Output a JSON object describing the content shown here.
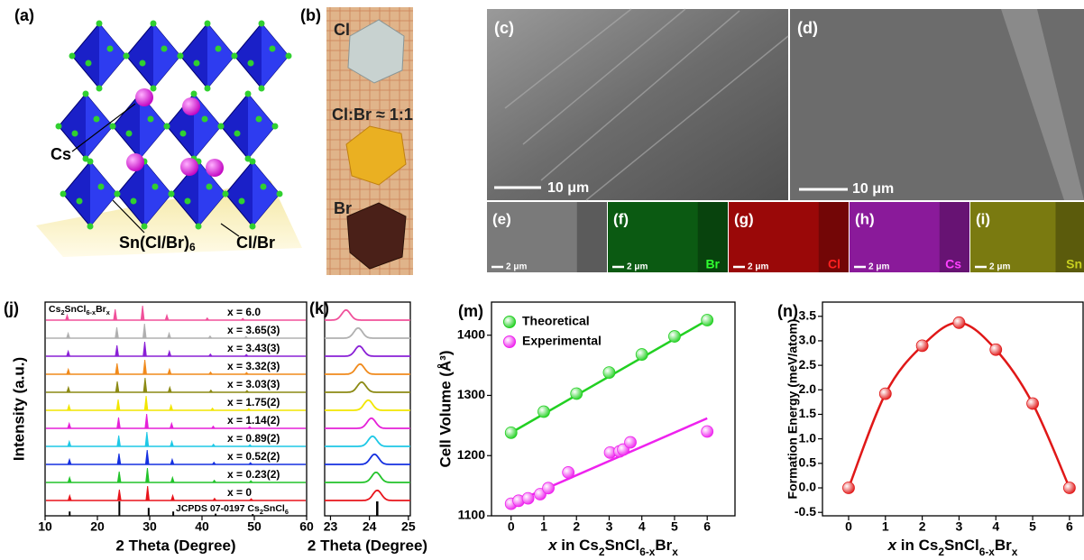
{
  "panel_a": {
    "label": "(a)",
    "cs": "Cs",
    "octahedron": "Sn(Cl/Br)",
    "octahedron_sub": "6",
    "halide": "Cl/Br"
  },
  "panel_b": {
    "label": "(b)",
    "top": "Cl",
    "middle": "Cl:Br ≈ 1:1",
    "bottom": "Br"
  },
  "panel_c": {
    "label": "(c)",
    "scale": "10 μm"
  },
  "panel_d": {
    "label": "(d)",
    "scale": "10 μm"
  },
  "maps": [
    {
      "label": "(e)",
      "scale": "2 μm"
    },
    {
      "label": "(f)",
      "scale": "2 μm",
      "element": "Br"
    },
    {
      "label": "(g)",
      "scale": "2 μm",
      "element": "Cl"
    },
    {
      "label": "(h)",
      "scale": "2 μm",
      "element": "Cs"
    },
    {
      "label": "(i)",
      "scale": "2 μm",
      "element": "Sn"
    }
  ],
  "chart_data": [
    {
      "type": "xrd",
      "label": "(j)",
      "title": [
        {
          "text": "Cs"
        },
        {
          "text": "2",
          "sub": true
        },
        {
          "text": "SnCl"
        },
        {
          "text": "6-x",
          "sub": true
        },
        {
          "text": "Br"
        },
        {
          "text": "x",
          "sub": true
        }
      ],
      "xlabel": "2 Theta (Degree)",
      "ylabel": "Intensity (a.u.)",
      "xlim": [
        10,
        60
      ],
      "xticks": [
        10,
        20,
        30,
        40,
        50,
        60
      ],
      "reference": {
        "name": [
          {
            "text": "JCPDS 07-0197 Cs"
          },
          {
            "text": "2",
            "sub": true
          },
          {
            "text": "SnCl"
          },
          {
            "text": "6",
            "sub": true
          }
        ],
        "color": "#000000",
        "x": [
          14.7,
          24.2,
          29.8,
          34.5,
          42.6,
          49.7
        ],
        "values": [
          0.3,
          1,
          0.55,
          0.3,
          0.15,
          0.12
        ]
      },
      "series": [
        {
          "name": "x = 0",
          "color": "#e8141b",
          "x": [
            14.7,
            24.2,
            29.6,
            34.4,
            42.4,
            49.4
          ],
          "values": [
            0.35,
            0.75,
            1,
            0.35,
            0.15,
            0.12
          ]
        },
        {
          "name": "x = 0.23(2)",
          "color": "#22c32a",
          "x": [
            14.68,
            24.17,
            29.56,
            34.36,
            42.35,
            49.34
          ],
          "values": [
            0.35,
            0.75,
            1,
            0.35,
            0.15,
            0.12
          ]
        },
        {
          "name": "x = 0.52(2)",
          "color": "#1530e0",
          "x": [
            14.66,
            24.13,
            29.52,
            34.3,
            42.28,
            49.26
          ],
          "values": [
            0.35,
            0.75,
            1,
            0.35,
            0.15,
            0.12
          ]
        },
        {
          "name": "x = 0.89(2)",
          "color": "#1ec8e6",
          "x": [
            14.63,
            24.08,
            29.46,
            34.23,
            42.19,
            49.16
          ],
          "values": [
            0.35,
            0.75,
            1,
            0.35,
            0.15,
            0.12
          ]
        },
        {
          "name": "x = 1.14(2)",
          "color": "#e520d8",
          "x": [
            14.61,
            24.05,
            29.42,
            34.19,
            42.14,
            49.1
          ],
          "values": [
            0.35,
            0.75,
            1,
            0.35,
            0.15,
            0.12
          ]
        },
        {
          "name": "x = 1.75(2)",
          "color": "#f2e600",
          "x": [
            14.56,
            23.97,
            29.32,
            34.08,
            42.0,
            48.94
          ],
          "values": [
            0.35,
            0.75,
            1,
            0.35,
            0.15,
            0.12
          ]
        },
        {
          "name": "x = 3.03(3)",
          "color": "#8c8a14",
          "x": [
            14.46,
            23.8,
            29.12,
            33.84,
            41.7,
            48.6
          ],
          "values": [
            0.35,
            0.75,
            1,
            0.35,
            0.15,
            0.12
          ]
        },
        {
          "name": "x = 3.32(3)",
          "color": "#f08a1c",
          "x": [
            14.44,
            23.76,
            29.07,
            33.78,
            41.63,
            48.52
          ],
          "values": [
            0.35,
            0.75,
            1,
            0.35,
            0.15,
            0.12
          ]
        },
        {
          "name": "x = 3.43(3)",
          "color": "#8a20d6",
          "x": [
            14.42,
            23.74,
            29.05,
            33.76,
            41.6,
            48.48
          ],
          "values": [
            0.35,
            0.75,
            1,
            0.35,
            0.15,
            0.12
          ]
        },
        {
          "name": "x = 3.65(3)",
          "color": "#b0b0b0",
          "x": [
            14.41,
            23.71,
            29.01,
            33.71,
            41.54,
            48.42
          ],
          "values": [
            0.35,
            0.75,
            1,
            0.35,
            0.15,
            0.12
          ]
        },
        {
          "name": "x = 6.0",
          "color": "#f0509a",
          "x": [
            14.22,
            23.4,
            28.64,
            33.28,
            41.0,
            47.8
          ],
          "values": [
            0.35,
            0.75,
            1,
            0.35,
            0.15,
            0.12
          ]
        }
      ]
    },
    {
      "type": "xrd_zoom",
      "label": "(k)",
      "xlabel": "2 Theta (Degree)",
      "xlim": [
        22.85,
        25.05
      ],
      "xticks": [
        23,
        24,
        25
      ]
    },
    {
      "type": "scatter",
      "label": "(m)",
      "xlabel": [
        {
          "text": "x",
          "italic": true
        },
        {
          "text": " in Cs"
        },
        {
          "text": "2",
          "sub": true
        },
        {
          "text": "SnCl"
        },
        {
          "text": "6-x",
          "sub": true
        },
        {
          "text": "Br"
        },
        {
          "text": "x",
          "sub": true
        }
      ],
      "ylabel": "Cell Volume (Å³)",
      "xlim": [
        -0.6,
        6.85
      ],
      "xticks": [
        0,
        1,
        2,
        3,
        4,
        5,
        6
      ],
      "ylim": [
        1100,
        1455
      ],
      "yticks": [
        1100,
        1200,
        1300,
        1400
      ],
      "legend": "upper left",
      "series": [
        {
          "name": "Theoretical",
          "color": "#22d022",
          "x": [
            0,
            1,
            2,
            3,
            4,
            5,
            6
          ],
          "values": [
            1238,
            1273,
            1303,
            1338,
            1368,
            1398,
            1425
          ],
          "fit_x": [
            0,
            6
          ],
          "fit_values": [
            1238,
            1425
          ]
        },
        {
          "name": "Experimental",
          "color": "#ee22ee",
          "x": [
            0,
            0.23,
            0.52,
            0.89,
            1.14,
            1.75,
            3.03,
            3.32,
            3.43,
            3.65,
            6.0
          ],
          "values": [
            1120,
            1125,
            1129,
            1136,
            1146,
            1172,
            1205,
            1207,
            1210,
            1222,
            1240
          ],
          "fit_x": [
            0,
            6
          ],
          "fit_values": [
            1120,
            1262
          ]
        }
      ]
    },
    {
      "type": "line",
      "label": "(n)",
      "xlabel": [
        {
          "text": "x",
          "italic": true
        },
        {
          "text": " in Cs"
        },
        {
          "text": "2",
          "sub": true
        },
        {
          "text": "SnCl"
        },
        {
          "text": "6-x",
          "sub": true
        },
        {
          "text": "Br"
        },
        {
          "text": "x",
          "sub": true
        }
      ],
      "ylabel": "Formation Energy (meV/atom)",
      "xlim": [
        -0.71,
        6.37
      ],
      "xticks": [
        0,
        1,
        2,
        3,
        4,
        5,
        6
      ],
      "ylim": [
        -0.57,
        3.79
      ],
      "yticks": [
        -0.5,
        {
          "value": 0,
          "label": "0.0"
        },
        0.5,
        {
          "value": 1,
          "label": "1.0"
        },
        1.5,
        {
          "value": 2,
          "label": "2.0"
        },
        2.5,
        {
          "value": 3,
          "label": "3.0"
        },
        3.5
      ],
      "series": [
        {
          "color": "#e01818",
          "x": [
            0,
            1,
            2,
            3,
            4,
            5,
            6
          ],
          "values": [
            0,
            1.92,
            2.9,
            3.37,
            2.82,
            1.72,
            0
          ]
        }
      ]
    }
  ]
}
